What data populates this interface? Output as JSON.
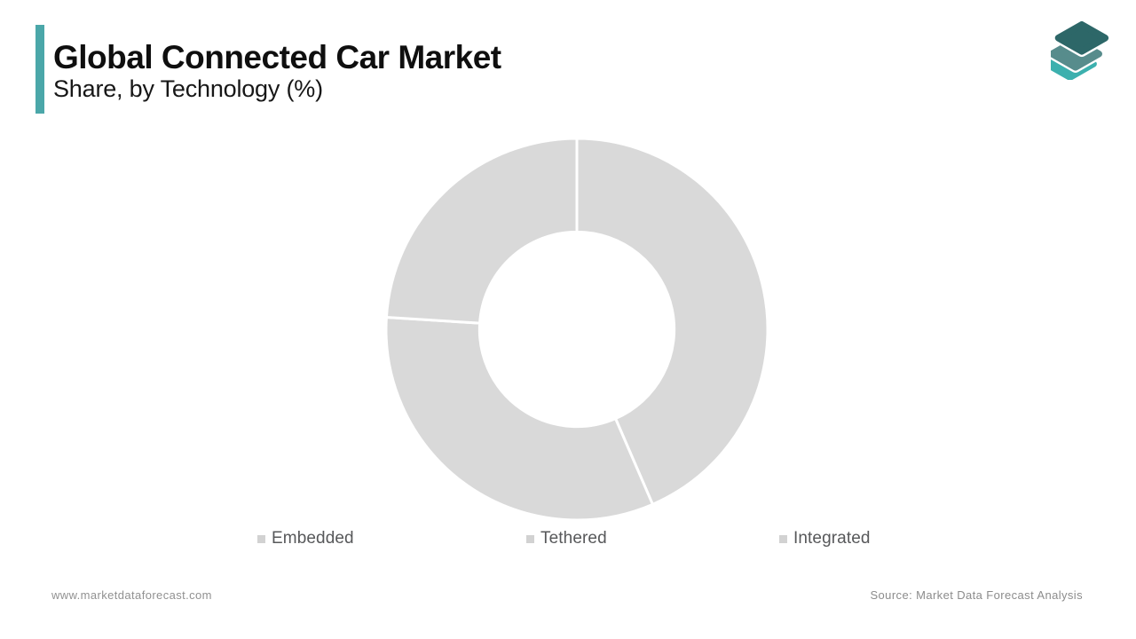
{
  "header": {
    "title": "Global Connected Car Market",
    "subtitle": "Share, by Technology (%)",
    "accent_color": "#4ba7a9"
  },
  "logo": {
    "name": "market-data-forecast-logo",
    "layer_colors": [
      "#3cb0ae",
      "#578c8c",
      "#2d6768"
    ]
  },
  "chart_data": {
    "type": "pie",
    "variant": "donut",
    "title": "Global Connected Car Market",
    "subtitle": "Share, by Technology (%)",
    "categories": [
      "Embedded",
      "Tethered",
      "Integrated"
    ],
    "values": [
      43.5,
      32.5,
      24
    ],
    "slice_colors": [
      "#d9d9d9",
      "#d9d9d9",
      "#d9d9d9"
    ],
    "separator_color": "#ffffff",
    "start_angle_deg": 0,
    "direction": "clockwise",
    "inner_radius_ratio": 0.51,
    "legend_position": "bottom"
  },
  "legend": {
    "marker_color": "#d2d2d2"
  },
  "footer": {
    "website": "www.marketdataforecast.com",
    "source": "Source: Market Data Forecast Analysis"
  }
}
